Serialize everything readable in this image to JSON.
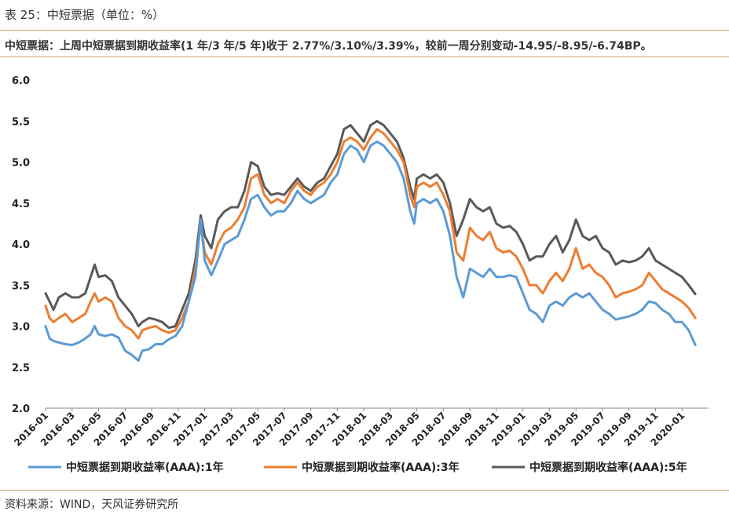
{
  "header": {
    "table_label": "表 25：中短票据（单位：%）"
  },
  "summary": "中短票据：上周中短票据到期收益率(1 年/3 年/5 年)收于 2.77%/3.10%/3.39%，较前一周分别变动-14.95/-8.95/-6.74BP。",
  "source": "资料来源：WIND，天风证券研究所",
  "colors": {
    "s1": "#5b9bd5",
    "s3": "#ed7d31",
    "s5": "#595959",
    "rule": "#c9a86a"
  },
  "chart_data": {
    "type": "line",
    "title": "",
    "xlabel": "",
    "ylabel": "",
    "ylim": [
      2.0,
      6.0
    ],
    "yticks": [
      "2.0",
      "2.5",
      "3.0",
      "3.5",
      "4.0",
      "4.5",
      "5.0",
      "5.5",
      "6.0"
    ],
    "xticks": [
      "2016-01",
      "2016-03",
      "2016-05",
      "2016-07",
      "2016-09",
      "2016-11",
      "2017-01",
      "2017-03",
      "2017-05",
      "2017-07",
      "2017-09",
      "2017-11",
      "2018-01",
      "2018-03",
      "2018-05",
      "2018-07",
      "2018-09",
      "2018-11",
      "2019-01",
      "2019-03",
      "2019-05",
      "2019-07",
      "2019-09",
      "2019-11",
      "2020-01"
    ],
    "x_unit": "month index from 2016-01",
    "legend_position": "bottom",
    "series": [
      {
        "name": "中短票据到期收益率(AAA):1年",
        "points": [
          [
            0,
            3.0
          ],
          [
            0.3,
            2.85
          ],
          [
            0.6,
            2.82
          ],
          [
            1,
            2.8
          ],
          [
            1.5,
            2.78
          ],
          [
            2,
            2.77
          ],
          [
            2.5,
            2.8
          ],
          [
            3,
            2.85
          ],
          [
            3.4,
            2.9
          ],
          [
            3.7,
            3.0
          ],
          [
            4,
            2.9
          ],
          [
            4.5,
            2.88
          ],
          [
            5,
            2.9
          ],
          [
            5.5,
            2.86
          ],
          [
            6,
            2.7
          ],
          [
            6.5,
            2.65
          ],
          [
            7,
            2.58
          ],
          [
            7.3,
            2.7
          ],
          [
            7.8,
            2.72
          ],
          [
            8.3,
            2.78
          ],
          [
            8.8,
            2.78
          ],
          [
            9.3,
            2.84
          ],
          [
            9.8,
            2.88
          ],
          [
            10.3,
            3.0
          ],
          [
            10.8,
            3.3
          ],
          [
            11.3,
            3.6
          ],
          [
            11.7,
            4.3
          ],
          [
            12,
            3.8
          ],
          [
            12.5,
            3.62
          ],
          [
            13,
            3.8
          ],
          [
            13.5,
            4.0
          ],
          [
            14,
            4.05
          ],
          [
            14.5,
            4.1
          ],
          [
            15,
            4.3
          ],
          [
            15.5,
            4.55
          ],
          [
            16,
            4.6
          ],
          [
            16.5,
            4.45
          ],
          [
            17,
            4.35
          ],
          [
            17.5,
            4.4
          ],
          [
            18,
            4.4
          ],
          [
            18.5,
            4.5
          ],
          [
            19,
            4.65
          ],
          [
            19.5,
            4.55
          ],
          [
            20,
            4.5
          ],
          [
            20.5,
            4.55
          ],
          [
            21,
            4.6
          ],
          [
            21.5,
            4.75
          ],
          [
            22,
            4.85
          ],
          [
            22.5,
            5.1
          ],
          [
            23,
            5.2
          ],
          [
            23.5,
            5.15
          ],
          [
            24,
            5.0
          ],
          [
            24.5,
            5.2
          ],
          [
            25,
            5.25
          ],
          [
            25.5,
            5.2
          ],
          [
            26,
            5.1
          ],
          [
            26.5,
            5.0
          ],
          [
            27,
            4.8
          ],
          [
            27.5,
            4.4
          ],
          [
            27.8,
            4.25
          ],
          [
            28,
            4.5
          ],
          [
            28.5,
            4.55
          ],
          [
            29,
            4.5
          ],
          [
            29.5,
            4.55
          ],
          [
            30,
            4.4
          ],
          [
            30.5,
            4.1
          ],
          [
            31,
            3.6
          ],
          [
            31.5,
            3.35
          ],
          [
            32,
            3.7
          ],
          [
            32.5,
            3.65
          ],
          [
            33,
            3.6
          ],
          [
            33.5,
            3.7
          ],
          [
            34,
            3.6
          ],
          [
            34.5,
            3.6
          ],
          [
            35,
            3.62
          ],
          [
            35.5,
            3.6
          ],
          [
            36,
            3.4
          ],
          [
            36.5,
            3.2
          ],
          [
            37,
            3.15
          ],
          [
            37.5,
            3.05
          ],
          [
            38,
            3.25
          ],
          [
            38.5,
            3.3
          ],
          [
            39,
            3.25
          ],
          [
            39.5,
            3.35
          ],
          [
            40,
            3.4
          ],
          [
            40.5,
            3.35
          ],
          [
            41,
            3.4
          ],
          [
            41.5,
            3.3
          ],
          [
            42,
            3.2
          ],
          [
            42.5,
            3.15
          ],
          [
            43,
            3.08
          ],
          [
            43.5,
            3.1
          ],
          [
            44,
            3.12
          ],
          [
            44.5,
            3.15
          ],
          [
            45,
            3.2
          ],
          [
            45.5,
            3.3
          ],
          [
            46,
            3.28
          ],
          [
            46.5,
            3.2
          ],
          [
            47,
            3.15
          ],
          [
            47.5,
            3.05
          ],
          [
            48,
            3.05
          ],
          [
            48.5,
            2.95
          ],
          [
            49,
            2.77
          ]
        ]
      },
      {
        "name": "中短票据到期收益率(AAA):3年",
        "points": [
          [
            0,
            3.25
          ],
          [
            0.3,
            3.1
          ],
          [
            0.6,
            3.05
          ],
          [
            1,
            3.1
          ],
          [
            1.5,
            3.15
          ],
          [
            2,
            3.05
          ],
          [
            2.5,
            3.1
          ],
          [
            3,
            3.15
          ],
          [
            3.4,
            3.3
          ],
          [
            3.7,
            3.4
          ],
          [
            4,
            3.3
          ],
          [
            4.5,
            3.35
          ],
          [
            5,
            3.3
          ],
          [
            5.5,
            3.1
          ],
          [
            6,
            3.0
          ],
          [
            6.5,
            2.95
          ],
          [
            7,
            2.85
          ],
          [
            7.3,
            2.95
          ],
          [
            7.8,
            2.98
          ],
          [
            8.3,
            3.0
          ],
          [
            8.8,
            2.95
          ],
          [
            9.3,
            2.92
          ],
          [
            9.8,
            2.95
          ],
          [
            10.3,
            3.1
          ],
          [
            10.8,
            3.3
          ],
          [
            11.3,
            3.7
          ],
          [
            11.7,
            4.25
          ],
          [
            12,
            3.9
          ],
          [
            12.5,
            3.75
          ],
          [
            13,
            4.0
          ],
          [
            13.5,
            4.15
          ],
          [
            14,
            4.2
          ],
          [
            14.5,
            4.3
          ],
          [
            15,
            4.45
          ],
          [
            15.5,
            4.8
          ],
          [
            16,
            4.85
          ],
          [
            16.5,
            4.6
          ],
          [
            17,
            4.5
          ],
          [
            17.5,
            4.55
          ],
          [
            18,
            4.5
          ],
          [
            18.5,
            4.65
          ],
          [
            19,
            4.75
          ],
          [
            19.5,
            4.65
          ],
          [
            20,
            4.6
          ],
          [
            20.5,
            4.7
          ],
          [
            21,
            4.75
          ],
          [
            21.5,
            4.85
          ],
          [
            22,
            5.0
          ],
          [
            22.5,
            5.25
          ],
          [
            23,
            5.3
          ],
          [
            23.5,
            5.25
          ],
          [
            24,
            5.15
          ],
          [
            24.5,
            5.3
          ],
          [
            25,
            5.4
          ],
          [
            25.5,
            5.35
          ],
          [
            26,
            5.25
          ],
          [
            26.5,
            5.15
          ],
          [
            27,
            5.0
          ],
          [
            27.5,
            4.6
          ],
          [
            27.8,
            4.45
          ],
          [
            28,
            4.7
          ],
          [
            28.5,
            4.75
          ],
          [
            29,
            4.7
          ],
          [
            29.5,
            4.75
          ],
          [
            30,
            4.6
          ],
          [
            30.5,
            4.4
          ],
          [
            31,
            3.9
          ],
          [
            31.5,
            3.8
          ],
          [
            32,
            4.2
          ],
          [
            32.5,
            4.1
          ],
          [
            33,
            4.05
          ],
          [
            33.5,
            4.15
          ],
          [
            34,
            3.95
          ],
          [
            34.5,
            3.9
          ],
          [
            35,
            3.92
          ],
          [
            35.5,
            3.85
          ],
          [
            36,
            3.7
          ],
          [
            36.5,
            3.5
          ],
          [
            37,
            3.5
          ],
          [
            37.5,
            3.4
          ],
          [
            38,
            3.55
          ],
          [
            38.5,
            3.65
          ],
          [
            39,
            3.55
          ],
          [
            39.5,
            3.7
          ],
          [
            40,
            3.95
          ],
          [
            40.5,
            3.7
          ],
          [
            41,
            3.75
          ],
          [
            41.5,
            3.65
          ],
          [
            42,
            3.6
          ],
          [
            42.5,
            3.5
          ],
          [
            43,
            3.35
          ],
          [
            43.5,
            3.4
          ],
          [
            44,
            3.42
          ],
          [
            44.5,
            3.45
          ],
          [
            45,
            3.5
          ],
          [
            45.5,
            3.65
          ],
          [
            46,
            3.55
          ],
          [
            46.5,
            3.45
          ],
          [
            47,
            3.4
          ],
          [
            47.5,
            3.35
          ],
          [
            48,
            3.3
          ],
          [
            48.5,
            3.22
          ],
          [
            49,
            3.1
          ]
        ]
      },
      {
        "name": "中短票据到期收益率(AAA):5年",
        "points": [
          [
            0,
            3.4
          ],
          [
            0.3,
            3.3
          ],
          [
            0.6,
            3.2
          ],
          [
            1,
            3.35
          ],
          [
            1.5,
            3.4
          ],
          [
            2,
            3.35
          ],
          [
            2.5,
            3.35
          ],
          [
            3,
            3.4
          ],
          [
            3.4,
            3.6
          ],
          [
            3.7,
            3.75
          ],
          [
            4,
            3.6
          ],
          [
            4.5,
            3.62
          ],
          [
            5,
            3.55
          ],
          [
            5.5,
            3.35
          ],
          [
            6,
            3.25
          ],
          [
            6.5,
            3.15
          ],
          [
            7,
            3.0
          ],
          [
            7.3,
            3.05
          ],
          [
            7.8,
            3.1
          ],
          [
            8.3,
            3.08
          ],
          [
            8.8,
            3.05
          ],
          [
            9.3,
            2.98
          ],
          [
            9.8,
            3.0
          ],
          [
            10.3,
            3.2
          ],
          [
            10.8,
            3.4
          ],
          [
            11.3,
            3.8
          ],
          [
            11.7,
            4.35
          ],
          [
            12,
            4.1
          ],
          [
            12.5,
            3.95
          ],
          [
            13,
            4.3
          ],
          [
            13.5,
            4.4
          ],
          [
            14,
            4.45
          ],
          [
            14.5,
            4.45
          ],
          [
            15,
            4.65
          ],
          [
            15.5,
            5.0
          ],
          [
            16,
            4.95
          ],
          [
            16.5,
            4.7
          ],
          [
            17,
            4.6
          ],
          [
            17.5,
            4.62
          ],
          [
            18,
            4.6
          ],
          [
            18.5,
            4.7
          ],
          [
            19,
            4.8
          ],
          [
            19.5,
            4.7
          ],
          [
            20,
            4.65
          ],
          [
            20.5,
            4.75
          ],
          [
            21,
            4.8
          ],
          [
            21.5,
            4.95
          ],
          [
            22,
            5.1
          ],
          [
            22.5,
            5.4
          ],
          [
            23,
            5.45
          ],
          [
            23.5,
            5.35
          ],
          [
            24,
            5.25
          ],
          [
            24.5,
            5.45
          ],
          [
            25,
            5.5
          ],
          [
            25.5,
            5.45
          ],
          [
            26,
            5.35
          ],
          [
            26.5,
            5.25
          ],
          [
            27,
            5.05
          ],
          [
            27.5,
            4.7
          ],
          [
            27.8,
            4.55
          ],
          [
            28,
            4.8
          ],
          [
            28.5,
            4.85
          ],
          [
            29,
            4.8
          ],
          [
            29.5,
            4.85
          ],
          [
            30,
            4.75
          ],
          [
            30.5,
            4.5
          ],
          [
            31,
            4.1
          ],
          [
            31.5,
            4.3
          ],
          [
            32,
            4.55
          ],
          [
            32.5,
            4.45
          ],
          [
            33,
            4.4
          ],
          [
            33.5,
            4.45
          ],
          [
            34,
            4.25
          ],
          [
            34.5,
            4.2
          ],
          [
            35,
            4.22
          ],
          [
            35.5,
            4.15
          ],
          [
            36,
            4.0
          ],
          [
            36.5,
            3.8
          ],
          [
            37,
            3.85
          ],
          [
            37.5,
            3.85
          ],
          [
            38,
            4.0
          ],
          [
            38.5,
            4.1
          ],
          [
            39,
            3.9
          ],
          [
            39.5,
            4.05
          ],
          [
            40,
            4.3
          ],
          [
            40.5,
            4.1
          ],
          [
            41,
            4.05
          ],
          [
            41.5,
            4.1
          ],
          [
            42,
            3.95
          ],
          [
            42.5,
            3.9
          ],
          [
            43,
            3.75
          ],
          [
            43.5,
            3.8
          ],
          [
            44,
            3.78
          ],
          [
            44.5,
            3.8
          ],
          [
            45,
            3.85
          ],
          [
            45.5,
            3.95
          ],
          [
            46,
            3.8
          ],
          [
            46.5,
            3.75
          ],
          [
            47,
            3.7
          ],
          [
            47.5,
            3.65
          ],
          [
            48,
            3.6
          ],
          [
            48.5,
            3.5
          ],
          [
            49,
            3.39
          ]
        ]
      }
    ]
  }
}
